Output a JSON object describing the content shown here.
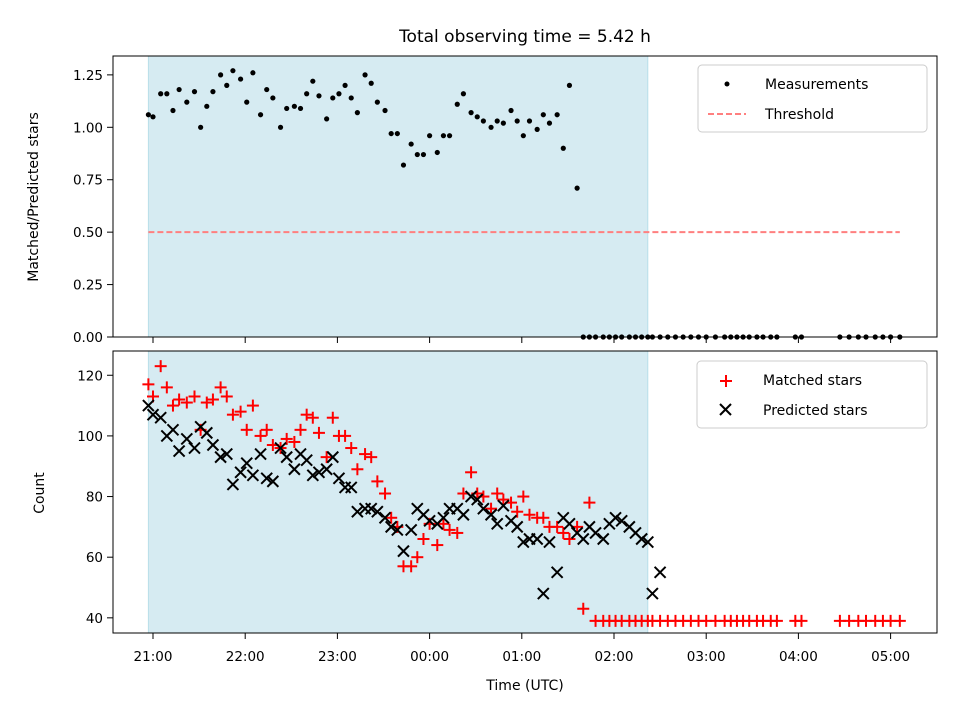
{
  "chart_data": [
    {
      "type": "scatter",
      "title": "Total observing time = 5.42 h",
      "xlabel": "",
      "ylabel": "Matched/Predicted stars",
      "ylim": [
        0.0,
        1.34
      ],
      "yticks": [
        "0.00",
        "0.25",
        "0.50",
        "0.75",
        "1.00",
        "1.25"
      ],
      "ytick_values": [
        0,
        0.25,
        0.5,
        0.75,
        1.0,
        1.25
      ],
      "legend_position": "top-right",
      "shaded_span": [
        "20:57",
        "02:22"
      ],
      "shaded_color": "#add8e6",
      "series": [
        {
          "name": "Measurements",
          "marker": "dot",
          "color": "#000000",
          "x": [
            "20:57",
            "21:00",
            "21:05",
            "21:09",
            "21:13",
            "21:17",
            "21:22",
            "21:27",
            "21:31",
            "21:35",
            "21:39",
            "21:44",
            "21:48",
            "21:52",
            "21:57",
            "22:01",
            "22:05",
            "22:10",
            "22:14",
            "22:18",
            "22:23",
            "22:27",
            "22:32",
            "22:36",
            "22:40",
            "22:44",
            "22:48",
            "22:53",
            "22:57",
            "23:01",
            "23:05",
            "23:09",
            "23:13",
            "23:18",
            "23:22",
            "23:26",
            "23:31",
            "23:35",
            "23:39",
            "23:43",
            "23:48",
            "23:52",
            "23:56",
            "00:00",
            "00:05",
            "00:09",
            "00:13",
            "00:18",
            "00:22",
            "00:27",
            "00:31",
            "00:35",
            "00:40",
            "00:44",
            "00:48",
            "00:53",
            "00:57",
            "01:01",
            "01:05",
            "01:10",
            "01:14",
            "01:18",
            "01:23",
            "01:27",
            "01:31",
            "01:36",
            "01:40",
            "01:44",
            "01:48",
            "01:53",
            "01:57",
            "02:01",
            "02:05",
            "02:10",
            "02:14",
            "02:18",
            "02:22",
            "02:25",
            "02:30",
            "02:35",
            "02:40",
            "02:45",
            "02:50",
            "02:55",
            "03:00",
            "03:06",
            "03:12",
            "03:16",
            "03:20",
            "03:24",
            "03:28",
            "03:33",
            "03:37",
            "03:42",
            "03:46",
            "03:58",
            "04:02",
            "04:27",
            "04:33",
            "04:39",
            "04:44",
            "04:50",
            "04:55",
            "05:00",
            "05:06"
          ],
          "values": [
            1.06,
            1.05,
            1.16,
            1.16,
            1.08,
            1.18,
            1.12,
            1.17,
            1.0,
            1.1,
            1.17,
            1.25,
            1.2,
            1.27,
            1.23,
            1.12,
            1.26,
            1.06,
            1.18,
            1.14,
            1.0,
            1.09,
            1.1,
            1.09,
            1.16,
            1.22,
            1.15,
            1.04,
            1.14,
            1.16,
            1.2,
            1.14,
            1.07,
            1.25,
            1.21,
            1.12,
            1.08,
            0.97,
            0.97,
            0.82,
            0.92,
            0.87,
            0.87,
            0.96,
            0.88,
            0.96,
            0.96,
            1.11,
            1.16,
            1.07,
            1.05,
            1.03,
            1.0,
            1.03,
            1.02,
            1.08,
            1.03,
            0.96,
            1.03,
            0.99,
            1.06,
            1.02,
            1.06,
            0.9,
            1.2,
            0.71,
            0,
            0,
            0,
            0,
            0,
            0,
            0,
            0,
            0,
            0,
            0,
            0,
            0,
            0,
            0,
            0,
            0,
            0,
            0,
            0,
            0,
            0,
            0,
            0,
            0,
            0,
            0,
            0,
            0,
            0,
            0,
            0,
            0,
            0,
            0,
            0,
            0,
            0,
            0
          ]
        },
        {
          "name": "Threshold",
          "marker": "dashed-line",
          "color": "#ff7f7f",
          "x": [
            "20:57",
            "05:06"
          ],
          "values": [
            0.5,
            0.5
          ]
        }
      ]
    },
    {
      "type": "scatter",
      "title": "",
      "xlabel": "Time (UTC)",
      "ylabel": "Count",
      "ylim": [
        35,
        128
      ],
      "yticks": [
        "40",
        "60",
        "80",
        "100",
        "120"
      ],
      "ytick_values": [
        40,
        60,
        80,
        100,
        120
      ],
      "xticks": [
        "21:00",
        "22:00",
        "23:00",
        "00:00",
        "01:00",
        "02:00",
        "03:00",
        "04:00",
        "05:00"
      ],
      "legend_position": "top-right",
      "shaded_span": [
        "20:57",
        "02:22"
      ],
      "shaded_color": "#add8e6",
      "series": [
        {
          "name": "Matched stars",
          "marker": "plus",
          "color": "#ff0000",
          "x": [
            "20:57",
            "21:00",
            "21:05",
            "21:09",
            "21:13",
            "21:17",
            "21:22",
            "21:27",
            "21:31",
            "21:35",
            "21:39",
            "21:44",
            "21:48",
            "21:52",
            "21:57",
            "22:01",
            "22:05",
            "22:10",
            "22:14",
            "22:18",
            "22:23",
            "22:27",
            "22:32",
            "22:36",
            "22:40",
            "22:44",
            "22:48",
            "22:53",
            "22:57",
            "23:01",
            "23:05",
            "23:09",
            "23:13",
            "23:18",
            "23:22",
            "23:26",
            "23:31",
            "23:35",
            "23:39",
            "23:43",
            "23:48",
            "23:52",
            "23:56",
            "00:00",
            "00:05",
            "00:09",
            "00:13",
            "00:18",
            "00:22",
            "00:27",
            "00:31",
            "00:35",
            "00:40",
            "00:44",
            "00:48",
            "00:53",
            "00:57",
            "01:01",
            "01:05",
            "01:10",
            "01:14",
            "01:18",
            "01:23",
            "01:27",
            "01:31",
            "01:36",
            "01:40",
            "01:44",
            "01:48",
            "01:53",
            "01:57",
            "02:01",
            "02:05",
            "02:10",
            "02:14",
            "02:18",
            "02:22",
            "02:25",
            "02:30",
            "02:35",
            "02:40",
            "02:45",
            "02:50",
            "02:55",
            "03:00",
            "03:06",
            "03:12",
            "03:16",
            "03:20",
            "03:24",
            "03:28",
            "03:33",
            "03:37",
            "03:42",
            "03:46",
            "03:58",
            "04:02",
            "04:27",
            "04:33",
            "04:39",
            "04:44",
            "04:50",
            "04:55",
            "05:00",
            "05:06"
          ],
          "values": [
            117,
            113,
            123,
            116,
            110,
            112,
            111,
            113,
            102,
            111,
            112,
            116,
            113,
            107,
            108,
            102,
            110,
            100,
            102,
            97,
            96,
            99,
            98,
            102,
            107,
            106,
            101,
            93,
            106,
            100,
            100,
            96,
            89,
            94,
            93,
            85,
            81,
            73,
            70,
            57,
            57,
            60,
            66,
            71,
            64,
            71,
            69,
            68,
            81,
            88,
            81,
            80,
            76,
            81,
            79,
            78,
            75,
            80,
            74,
            73,
            73,
            70,
            70,
            68,
            66,
            70,
            43,
            78,
            39,
            39,
            39,
            39,
            39,
            39,
            39,
            39,
            39,
            39,
            39,
            39,
            39,
            39,
            39,
            39,
            39,
            39,
            39,
            39,
            39,
            39,
            39,
            39,
            39,
            39,
            39,
            39,
            39,
            39,
            39,
            39,
            39,
            39,
            39,
            39,
            39
          ]
        },
        {
          "name": "Predicted stars",
          "marker": "cross",
          "color": "#000000",
          "x": [
            "20:57",
            "21:00",
            "21:05",
            "21:09",
            "21:13",
            "21:17",
            "21:22",
            "21:27",
            "21:31",
            "21:35",
            "21:39",
            "21:44",
            "21:48",
            "21:52",
            "21:57",
            "22:01",
            "22:05",
            "22:10",
            "22:14",
            "22:18",
            "22:23",
            "22:27",
            "22:32",
            "22:36",
            "22:40",
            "22:44",
            "22:48",
            "22:53",
            "22:57",
            "23:01",
            "23:05",
            "23:09",
            "23:13",
            "23:18",
            "23:22",
            "23:26",
            "23:31",
            "23:35",
            "23:39",
            "23:43",
            "23:48",
            "23:52",
            "23:56",
            "00:00",
            "00:05",
            "00:09",
            "00:13",
            "00:18",
            "00:22",
            "00:27",
            "00:31",
            "00:35",
            "00:40",
            "00:44",
            "00:48",
            "00:53",
            "00:57",
            "01:01",
            "01:05",
            "01:10",
            "01:14",
            "01:18",
            "01:23",
            "01:27",
            "01:31",
            "01:36",
            "01:40",
            "01:44",
            "01:48",
            "01:53",
            "01:57",
            "02:01",
            "02:05",
            "02:10",
            "02:14",
            "02:18",
            "02:22",
            "02:25",
            "02:30"
          ],
          "values": [
            110,
            107,
            106,
            100,
            102,
            95,
            99,
            96,
            103,
            101,
            97,
            93,
            94,
            84,
            88,
            91,
            87,
            94,
            86,
            85,
            96,
            93,
            89,
            94,
            92,
            87,
            88,
            89,
            93,
            86,
            83,
            83,
            75,
            76,
            76,
            75,
            73,
            70,
            69,
            62,
            69,
            76,
            74,
            72,
            71,
            73,
            76,
            76,
            74,
            80,
            79,
            76,
            74,
            71,
            77,
            72,
            70,
            65,
            66,
            66,
            48,
            65,
            55,
            73,
            71,
            68,
            66,
            70,
            68,
            66,
            71,
            73,
            72,
            70,
            68,
            66,
            65,
            48,
            55
          ]
        }
      ]
    }
  ]
}
